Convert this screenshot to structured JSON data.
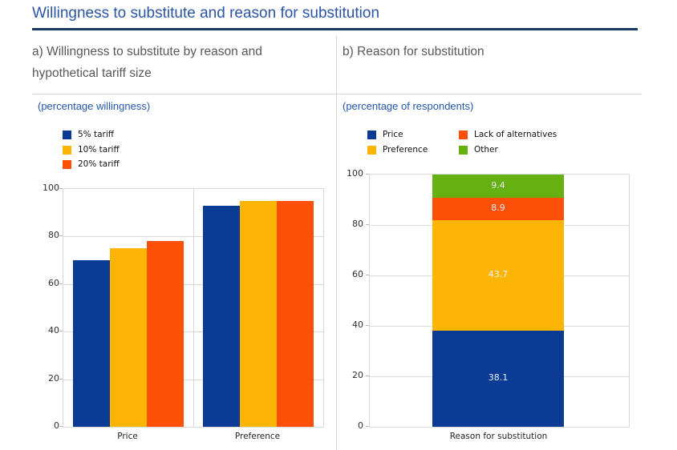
{
  "page": {
    "title": "Willingness to substitute and reason for substitution"
  },
  "panels": {
    "left": {
      "title": "a) Willingness to substitute by reason and hypothetical tariff size",
      "subtitle": "(percentage willingness)"
    },
    "right": {
      "title": "b) Reason for substitution",
      "subtitle": "(percentage of respondents)"
    }
  },
  "colors": {
    "series_blue": "#0b3b95",
    "series_gold": "#fcb405",
    "series_orange": "#fc4f08",
    "series_green": "#64b111",
    "title_blue": "#2b54a4",
    "subtitle_blue": "#2456a8",
    "header_rule_navy": "#17375e",
    "grid_gray": "#d9d9d9"
  },
  "chart_data": [
    {
      "type": "bar",
      "panel": "a",
      "title": "a) Willingness to substitute by reason and hypothetical tariff size",
      "subtitle": "(percentage willingness)",
      "categories": [
        "Price",
        "Preference"
      ],
      "series": [
        {
          "name": "5% tariff",
          "color": "#0b3b95",
          "values": [
            70,
            93
          ]
        },
        {
          "name": "10% tariff",
          "color": "#fcb405",
          "values": [
            75,
            95
          ]
        },
        {
          "name": "20% tariff",
          "color": "#fc4f08",
          "values": [
            78,
            95
          ]
        }
      ],
      "xlabel": "",
      "ylabel": "percentage willingness",
      "ylim": [
        0,
        100
      ],
      "yticks": [
        0,
        20,
        40,
        60,
        80,
        100
      ],
      "grid": true,
      "legend_position": "top-left"
    },
    {
      "type": "bar",
      "stacked": true,
      "panel": "b",
      "title": "b) Reason for substitution",
      "subtitle": "(percentage of respondents)",
      "categories": [
        "Reason for substitution"
      ],
      "series": [
        {
          "name": "Price",
          "color": "#0b3b95",
          "values": [
            38.1
          ],
          "label": "38.1"
        },
        {
          "name": "Preference",
          "color": "#fcb405",
          "values": [
            43.7
          ],
          "label": "43.7"
        },
        {
          "name": "Lack of alternatives",
          "color": "#fc4f08",
          "values": [
            8.9
          ],
          "label": "8.9"
        },
        {
          "name": "Other",
          "color": "#64b111",
          "values": [
            9.4
          ],
          "label": "9.4"
        }
      ],
      "xlabel": "",
      "ylabel": "percentage of respondents",
      "ylim": [
        0,
        100
      ],
      "yticks": [
        0,
        20,
        40,
        60,
        80,
        100
      ],
      "grid": true,
      "legend_position": "top",
      "data_labels": "white values inside segments"
    }
  ]
}
